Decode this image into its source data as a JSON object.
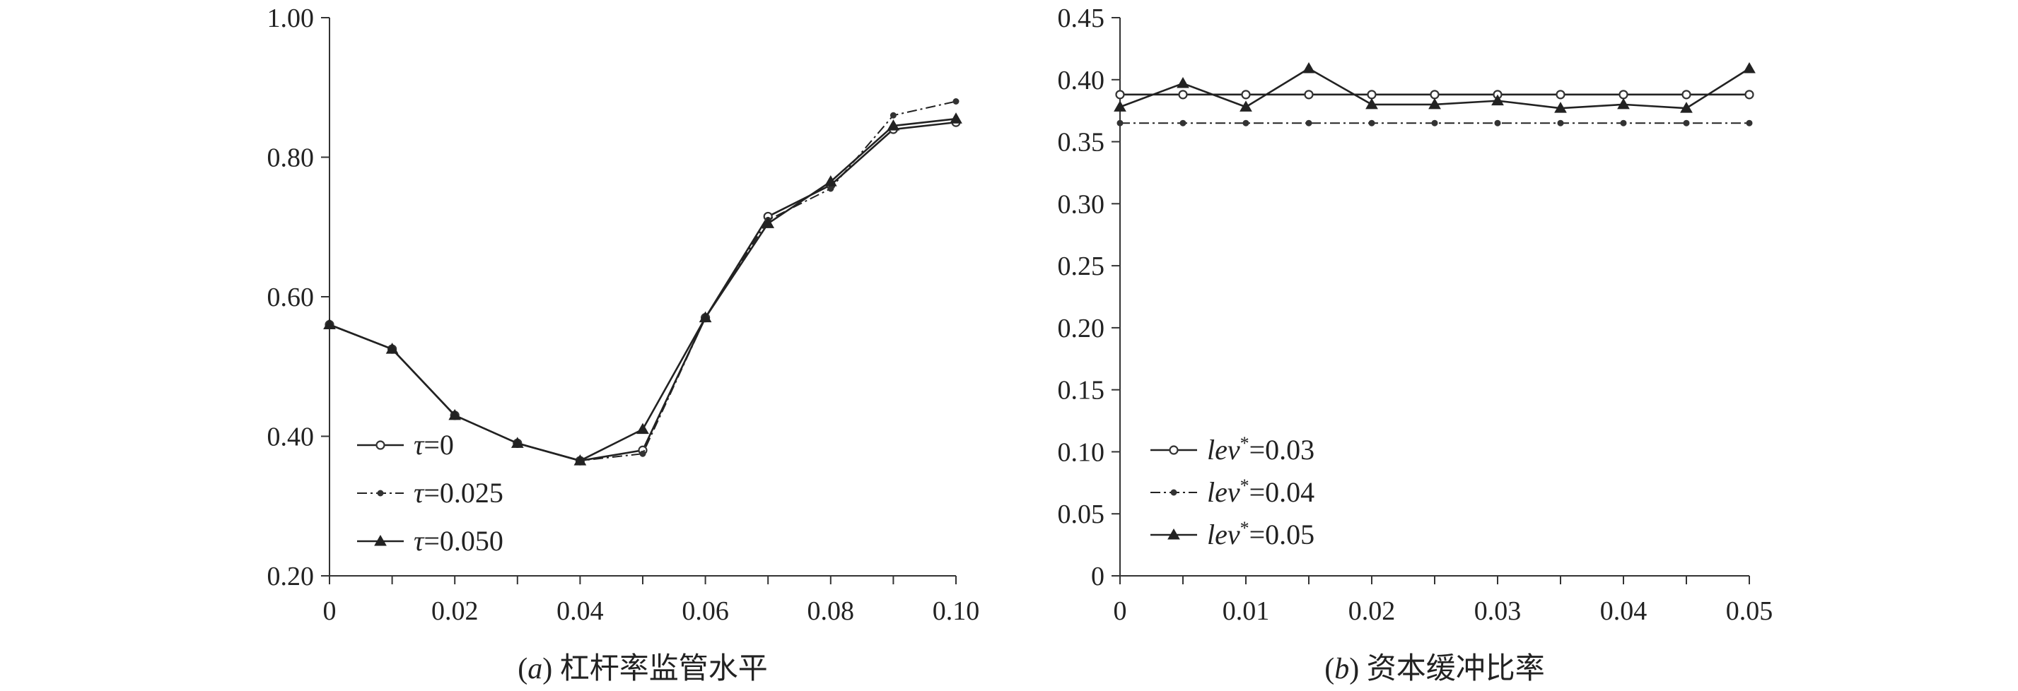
{
  "chart_data": [
    {
      "type": "line",
      "caption_prefix": "(a)",
      "caption_text": "杠杆率监管水平",
      "xlim": [
        0,
        0.1
      ],
      "ylim": [
        0.2,
        1.0
      ],
      "xticks": [
        "0",
        "0.02",
        "0.04",
        "0.06",
        "0.08",
        "0.10"
      ],
      "yticks": [
        "0.20",
        "0.40",
        "0.60",
        "0.80",
        "1.00"
      ],
      "x": [
        0,
        0.01,
        0.02,
        0.03,
        0.04,
        0.05,
        0.06,
        0.07,
        0.08,
        0.09,
        0.1
      ],
      "legend_position": "bottom-left",
      "series": [
        {
          "name": "τ=0",
          "legend_symbol": "τ",
          "legend_value": "=0",
          "style": "solid",
          "marker": "circle",
          "values": [
            0.56,
            0.525,
            0.43,
            0.39,
            0.365,
            0.38,
            0.57,
            0.715,
            0.76,
            0.84,
            0.85
          ]
        },
        {
          "name": "τ=0.025",
          "legend_symbol": "τ",
          "legend_value": "=0.025",
          "style": "dashdot",
          "marker": "dot",
          "values": [
            0.56,
            0.525,
            0.43,
            0.39,
            0.365,
            0.375,
            0.57,
            0.71,
            0.755,
            0.86,
            0.88
          ]
        },
        {
          "name": "τ=0.050",
          "legend_symbol": "τ",
          "legend_value": "=0.050",
          "style": "solid",
          "marker": "triangle",
          "values": [
            0.56,
            0.525,
            0.43,
            0.39,
            0.365,
            0.41,
            0.57,
            0.705,
            0.765,
            0.845,
            0.855
          ]
        }
      ]
    },
    {
      "type": "line",
      "caption_prefix": "(b)",
      "caption_text": "资本缓冲比率",
      "xlim": [
        0,
        0.05
      ],
      "ylim": [
        0,
        0.45
      ],
      "xticks": [
        "0",
        "0.01",
        "0.02",
        "0.03",
        "0.04",
        "0.05"
      ],
      "yticks": [
        "0",
        "0.05",
        "0.10",
        "0.15",
        "0.20",
        "0.25",
        "0.30",
        "0.35",
        "0.40",
        "0.45"
      ],
      "x": [
        0,
        0.005,
        0.01,
        0.015,
        0.02,
        0.025,
        0.03,
        0.035,
        0.04,
        0.045,
        0.05
      ],
      "legend_position": "bottom-left",
      "series": [
        {
          "name": "lev*=0.03",
          "legend_symbol": "lev",
          "legend_value": "=0.03",
          "style": "solid",
          "marker": "circle",
          "values": [
            0.388,
            0.388,
            0.388,
            0.388,
            0.388,
            0.388,
            0.388,
            0.388,
            0.388,
            0.388,
            0.388
          ]
        },
        {
          "name": "lev*=0.04",
          "legend_symbol": "lev",
          "legend_value": "=0.04",
          "style": "dashdot",
          "marker": "dot",
          "values": [
            0.365,
            0.365,
            0.365,
            0.365,
            0.365,
            0.365,
            0.365,
            0.365,
            0.365,
            0.365,
            0.365
          ]
        },
        {
          "name": "lev*=0.05",
          "legend_symbol": "lev",
          "legend_value": "=0.05",
          "style": "solid",
          "marker": "triangle",
          "values": [
            0.378,
            0.397,
            0.378,
            0.409,
            0.38,
            0.38,
            0.383,
            0.377,
            0.38,
            0.377,
            0.409
          ]
        }
      ]
    }
  ]
}
